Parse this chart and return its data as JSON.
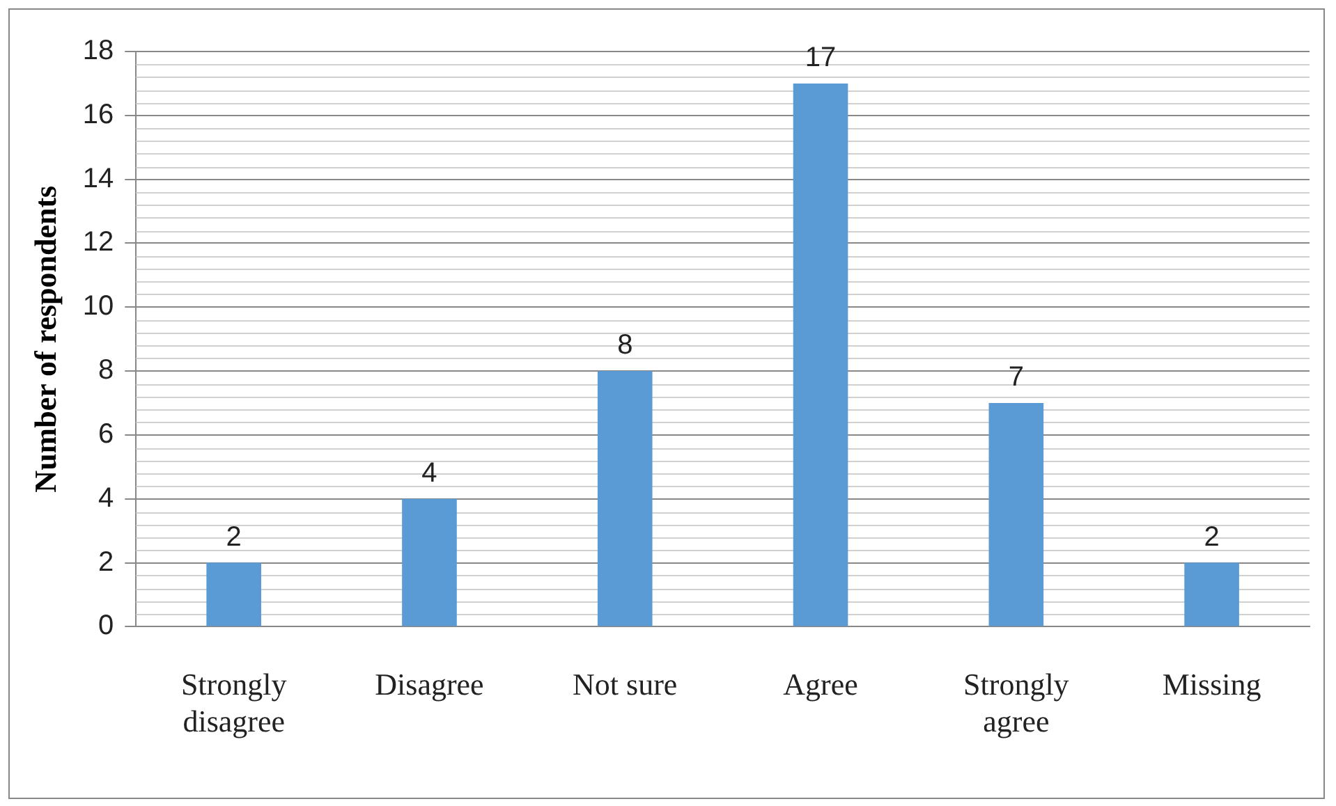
{
  "chart_data": {
    "type": "bar",
    "ylabel": "Number of respondents",
    "categories": [
      "Strongly disagree",
      "Disagree",
      "Not sure",
      "Agree",
      "Strongly agree",
      "Missing"
    ],
    "values": [
      2,
      4,
      8,
      17,
      7,
      2
    ],
    "color": "#5b9bd5",
    "ylim": [
      0,
      18
    ],
    "yticks": [
      0,
      2,
      4,
      6,
      8,
      10,
      12,
      14,
      16,
      18
    ],
    "grid": "y",
    "data_labels": true,
    "legend": false
  }
}
